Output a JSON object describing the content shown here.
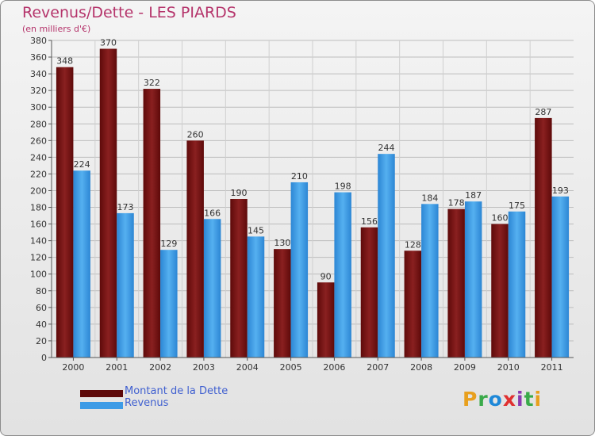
{
  "title": "Revenus/Dette - LES PIARDS",
  "subtitle": "(en milliers d'€)",
  "legend": {
    "dette_label": "Montant de la Dette",
    "revenus_label": "Revenus"
  },
  "logo": {
    "text": "Proxiti",
    "letters": [
      "P",
      "r",
      "o",
      "x",
      "i",
      "t",
      "i"
    ],
    "colors": [
      "#e8a01e",
      "#3aaa4a",
      "#1e88d8",
      "#e03030",
      "#8a3ab0",
      "#3aaa4a",
      "#e8a01e"
    ]
  },
  "colors": {
    "dette": "#7a1515",
    "revenus": "#3d9be6",
    "title": "#b5346b",
    "legend_text": "#4060d0"
  },
  "chart_data": {
    "type": "bar",
    "title": "Revenus/Dette - LES PIARDS",
    "ylabel": "(en milliers d'€)",
    "xlabel": "",
    "categories": [
      "2000",
      "2001",
      "2002",
      "2003",
      "2004",
      "2005",
      "2006",
      "2007",
      "2008",
      "2009",
      "2010",
      "2011"
    ],
    "series": [
      {
        "name": "Montant de la Dette",
        "values": [
          348,
          370,
          322,
          260,
          190,
          130,
          90,
          156,
          128,
          178,
          160,
          287
        ]
      },
      {
        "name": "Revenus",
        "values": [
          224,
          173,
          129,
          166,
          145,
          210,
          198,
          244,
          184,
          187,
          175,
          193
        ]
      }
    ],
    "ylim": [
      0,
      380
    ],
    "ytick_step": 20,
    "grid": true,
    "legend_position": "bottom-left"
  }
}
